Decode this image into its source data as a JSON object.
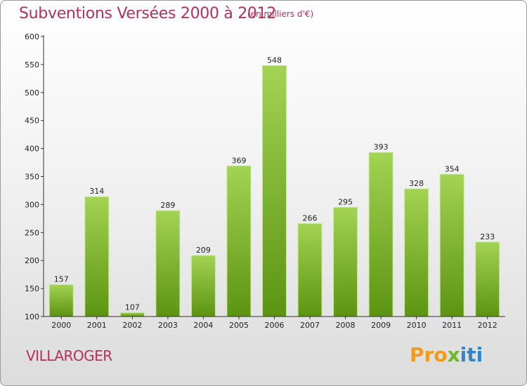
{
  "title": "Subventions Versées 2000 à 2012",
  "subtitle": "(en milliers d'€)",
  "place": "VILLAROGER",
  "logo": {
    "part1": "Pro",
    "part2": "x",
    "part3": "iti"
  },
  "colors": {
    "title": "#b5305a",
    "bar_light": "#9fd04a",
    "bar_dark": "#5f9615",
    "axis": "#333333"
  },
  "chart_data": {
    "type": "bar",
    "categories": [
      "2000",
      "2001",
      "2002",
      "2003",
      "2004",
      "2005",
      "2006",
      "2007",
      "2008",
      "2009",
      "2010",
      "2011",
      "2012"
    ],
    "values": [
      157,
      314,
      107,
      289,
      209,
      369,
      548,
      266,
      295,
      393,
      328,
      354,
      233
    ],
    "ylim": [
      100,
      600
    ],
    "yticks": [
      100,
      150,
      200,
      250,
      300,
      350,
      400,
      450,
      500,
      550,
      600
    ],
    "grid": false,
    "legend": "none"
  }
}
